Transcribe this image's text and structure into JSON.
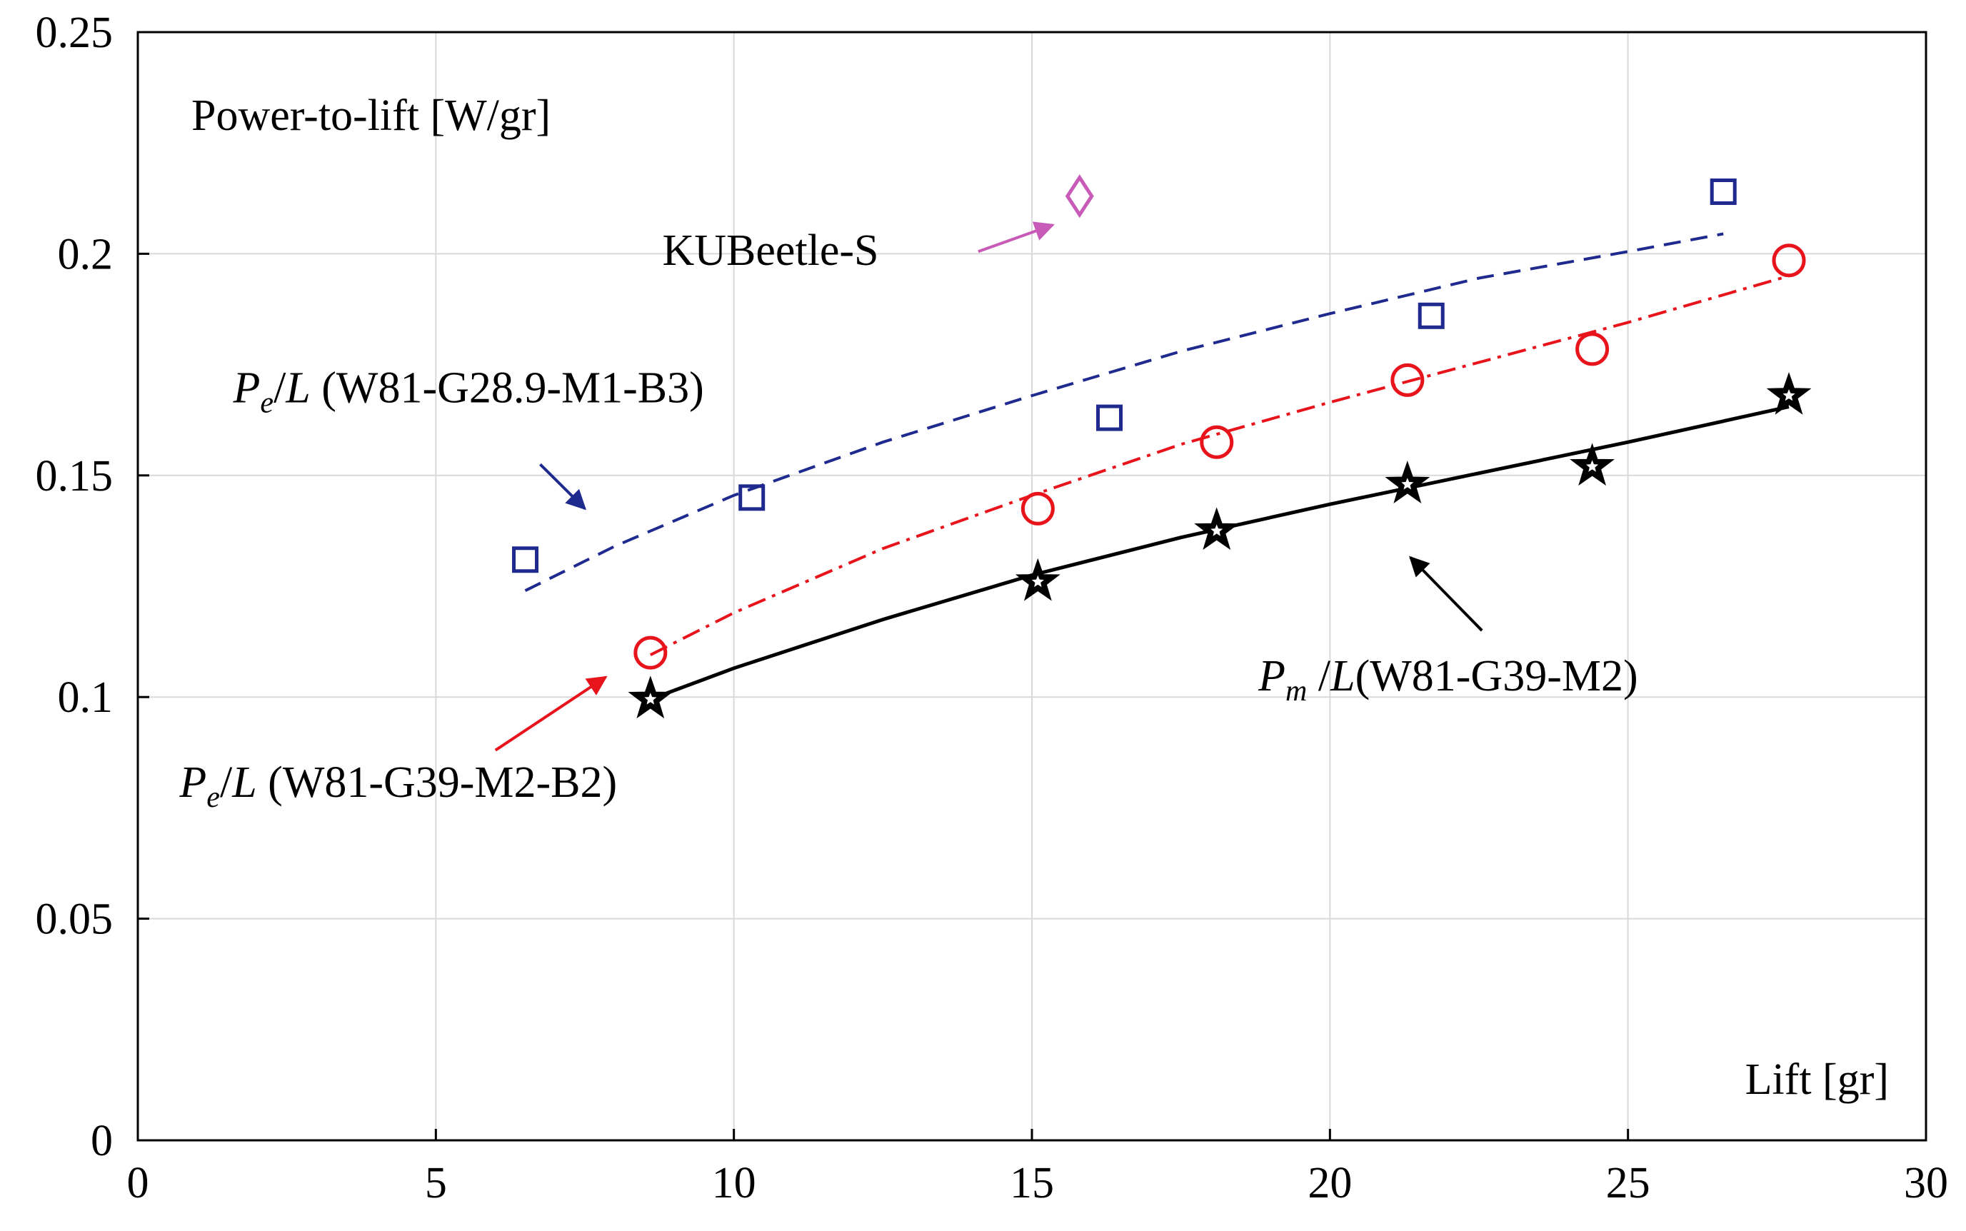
{
  "chart_data": {
    "type": "scatter",
    "xlabel": "Lift  [gr]",
    "ylabel": "Power-to-lift  [W/gr]",
    "xlim": [
      0,
      30
    ],
    "ylim": [
      0,
      0.25
    ],
    "xticks": [
      0,
      5,
      10,
      15,
      20,
      25,
      30
    ],
    "xtick_labels": [
      "0",
      "5",
      "10",
      "15",
      "20",
      "25",
      "30"
    ],
    "yticks": [
      0,
      0.05,
      0.1,
      0.15,
      0.2,
      0.25
    ],
    "ytick_labels": [
      "0",
      "0.05",
      "0.1",
      "0.15",
      "0.2",
      "0.25"
    ],
    "grid": true,
    "series": [
      {
        "key": "pe_g289",
        "marker": "square",
        "color": "#1f2a8f",
        "line_style": "dashed",
        "points": [
          [
            6.5,
            0.131
          ],
          [
            10.3,
            0.145
          ],
          [
            16.3,
            0.163
          ],
          [
            21.7,
            0.186
          ],
          [
            26.6,
            0.214
          ]
        ],
        "fit": [
          [
            6.5,
            0.124
          ],
          [
            8.0,
            0.134
          ],
          [
            10.0,
            0.1455
          ],
          [
            12.5,
            0.1575
          ],
          [
            15.0,
            0.168
          ],
          [
            17.5,
            0.178
          ],
          [
            20.0,
            0.1865
          ],
          [
            22.5,
            0.1945
          ],
          [
            25.0,
            0.2005
          ],
          [
            26.6,
            0.2045
          ]
        ]
      },
      {
        "key": "pe_g39",
        "marker": "circle",
        "color": "#e8141c",
        "line_style": "dashdot",
        "points": [
          [
            8.6,
            0.11
          ],
          [
            15.1,
            0.1425
          ],
          [
            18.1,
            0.1575
          ],
          [
            21.3,
            0.1715
          ],
          [
            24.4,
            0.1785
          ],
          [
            27.7,
            0.1985
          ]
        ],
        "fit": [
          [
            8.6,
            0.1095
          ],
          [
            10.0,
            0.119
          ],
          [
            12.5,
            0.1335
          ],
          [
            15.0,
            0.1455
          ],
          [
            17.5,
            0.157
          ],
          [
            20.0,
            0.1665
          ],
          [
            22.5,
            0.1755
          ],
          [
            25.0,
            0.1845
          ],
          [
            27.7,
            0.195
          ]
        ]
      },
      {
        "key": "pm_g39",
        "marker": "star",
        "color": "#000000",
        "line_style": "solid",
        "points": [
          [
            8.6,
            0.0995
          ],
          [
            15.1,
            0.126
          ],
          [
            18.1,
            0.1375
          ],
          [
            21.3,
            0.148
          ],
          [
            24.4,
            0.152
          ],
          [
            27.7,
            0.168
          ]
        ],
        "fit": [
          [
            8.6,
            0.0995
          ],
          [
            10.0,
            0.1065
          ],
          [
            12.5,
            0.1175
          ],
          [
            15.0,
            0.1275
          ],
          [
            17.5,
            0.136
          ],
          [
            20.0,
            0.1435
          ],
          [
            22.5,
            0.1505
          ],
          [
            25.0,
            0.1575
          ],
          [
            27.7,
            0.1655
          ]
        ]
      },
      {
        "key": "kubeetle",
        "marker": "diamond",
        "color": "#c85ab8",
        "line_style": "none",
        "points": [
          [
            15.8,
            0.213
          ]
        ],
        "fit": []
      }
    ],
    "annotations": [
      {
        "key": "ann_pe_g289",
        "parts": [
          {
            "t": "P",
            "it": true
          },
          {
            "t": "e",
            "it": true,
            "sub": true
          },
          {
            "t": "/",
            "it": false
          },
          {
            "t": "L",
            "it": true
          },
          {
            "t": " (W81-G28.9-M1-B3)",
            "it": false
          }
        ],
        "at": [
          1.6,
          0.1665
        ],
        "arrow_from": [
          6.75,
          0.1525
        ],
        "arrow_to": [
          7.5,
          0.1425
        ],
        "color": "#1f2a8f"
      },
      {
        "key": "ann_pe_g39",
        "parts": [
          {
            "t": "P",
            "it": true
          },
          {
            "t": "e",
            "it": true,
            "sub": true
          },
          {
            "t": "/",
            "it": false
          },
          {
            "t": "L",
            "it": true
          },
          {
            "t": " (W81-G39-M2-B2)",
            "it": false
          }
        ],
        "at": [
          0.7,
          0.0775
        ],
        "arrow_from": [
          6.0,
          0.088
        ],
        "arrow_to": [
          7.85,
          0.1045
        ],
        "color": "#e8141c"
      },
      {
        "key": "ann_pm_g39",
        "parts": [
          {
            "t": "P",
            "it": true
          },
          {
            "t": "m",
            "it": true,
            "sub": true
          },
          {
            "t": " /",
            "it": false
          },
          {
            "t": "L",
            "it": true
          },
          {
            "t": "(W81-G39-M2)",
            "it": false
          }
        ],
        "at": [
          18.8,
          0.1015
        ],
        "arrow_from": [
          22.55,
          0.115
        ],
        "arrow_to": [
          21.35,
          0.1315
        ],
        "color": "#000000"
      },
      {
        "key": "ann_kubeetle",
        "parts": [
          {
            "t": "KUBeetle-S",
            "it": false
          }
        ],
        "at": [
          8.8,
          0.1975
        ],
        "arrow_from": [
          14.1,
          0.2005
        ],
        "arrow_to": [
          15.35,
          0.2065
        ],
        "color": "#c85ab8"
      }
    ]
  }
}
